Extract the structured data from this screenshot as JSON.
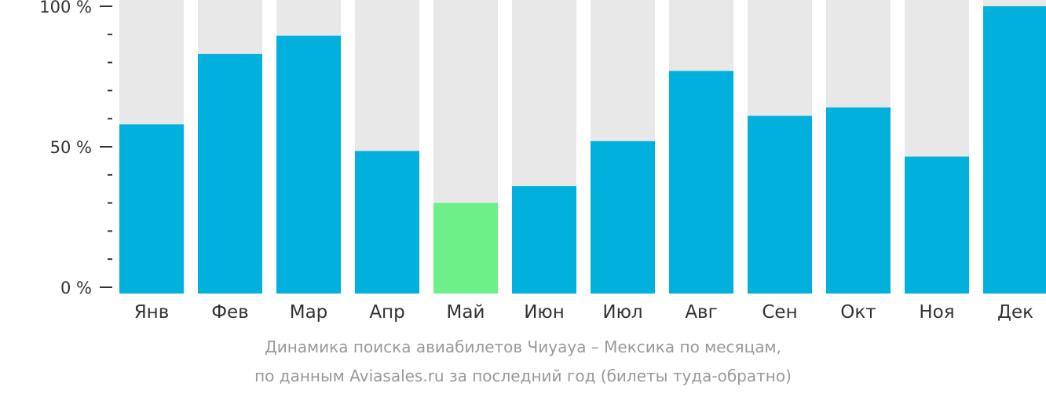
{
  "chart_data": {
    "type": "bar",
    "categories": [
      "Янв",
      "Фев",
      "Мар",
      "Апр",
      "Май",
      "Июн",
      "Июл",
      "Авг",
      "Сен",
      "Окт",
      "Ноя",
      "Дек"
    ],
    "values": [
      58,
      83,
      89.5,
      48.5,
      30,
      36,
      52,
      77,
      61,
      64,
      46.5,
      100
    ],
    "highlight_index": 4,
    "ylim": [
      0,
      100
    ],
    "yticks": [
      {
        "value": 0,
        "label": "0 %"
      },
      {
        "value": 50,
        "label": "50 %"
      },
      {
        "value": 100,
        "label": "100 %"
      }
    ],
    "minor_tick_step": 10,
    "colors": {
      "bar": "#01b0dd",
      "highlight": "#6cf087",
      "track": "#e8e8e8",
      "axis": "#333333"
    }
  },
  "caption": {
    "line1": "Динамика поиска авиабилетов Чиуауа – Мексика по месяцам,",
    "line2": "по данным Aviasales.ru за последний год (билеты туда-обратно)"
  }
}
